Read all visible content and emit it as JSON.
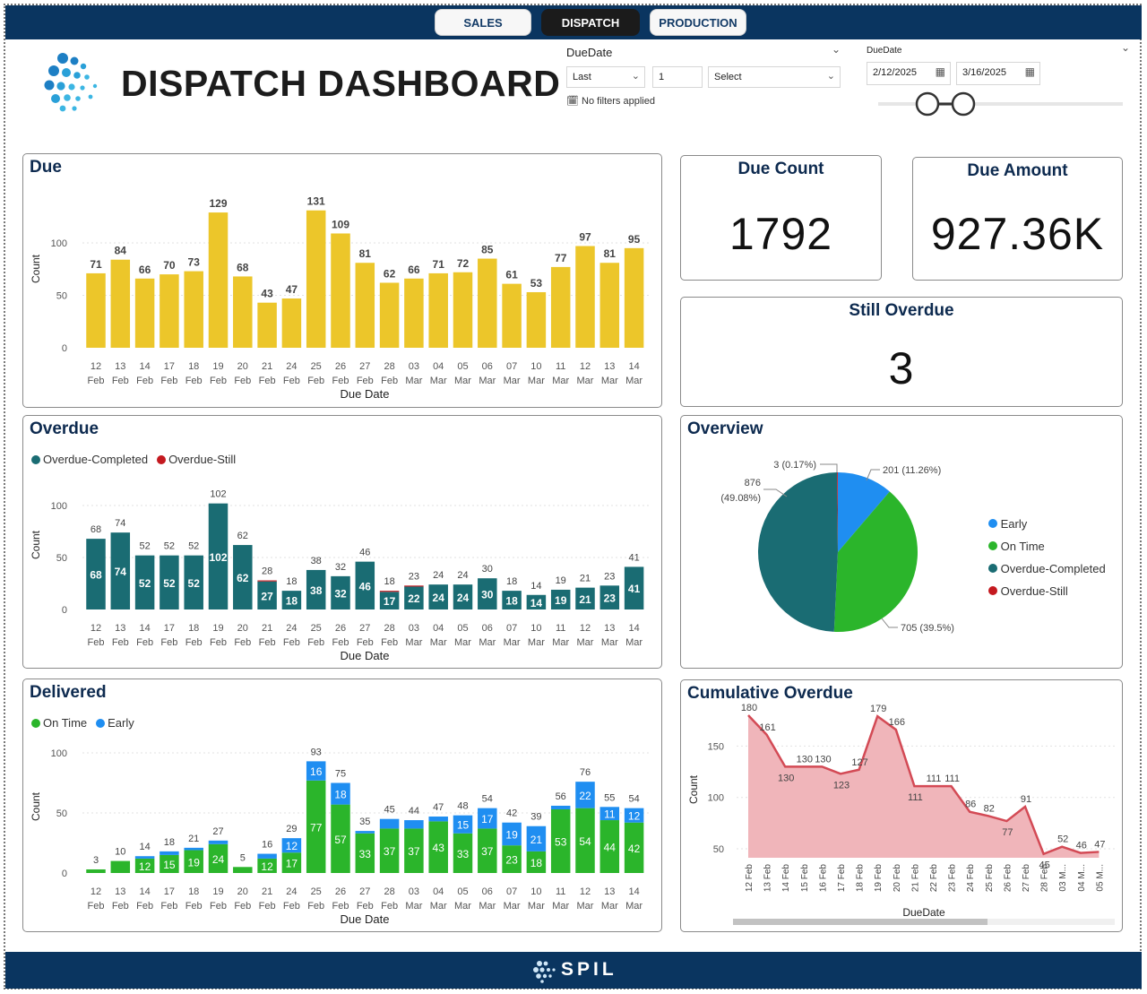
{
  "tabs": [
    "SALES",
    "DISPATCH",
    "PRODUCTION"
  ],
  "header": {
    "title": "DISPATCH DASHBOARD",
    "filter1": {
      "label": "DueDate",
      "mode": "Last",
      "count": "1",
      "unit": "Select",
      "status": "No filters applied"
    },
    "filter2": {
      "label": "DueDate",
      "start": "2/12/2025",
      "end": "3/16/2025"
    }
  },
  "dates": [
    [
      "12",
      "Feb"
    ],
    [
      "13",
      "Feb"
    ],
    [
      "14",
      "Feb"
    ],
    [
      "17",
      "Feb"
    ],
    [
      "18",
      "Feb"
    ],
    [
      "19",
      "Feb"
    ],
    [
      "20",
      "Feb"
    ],
    [
      "21",
      "Feb"
    ],
    [
      "24",
      "Feb"
    ],
    [
      "25",
      "Feb"
    ],
    [
      "26",
      "Feb"
    ],
    [
      "27",
      "Feb"
    ],
    [
      "28",
      "Feb"
    ],
    [
      "03",
      "Mar"
    ],
    [
      "04",
      "Mar"
    ],
    [
      "05",
      "Mar"
    ],
    [
      "06",
      "Mar"
    ],
    [
      "07",
      "Mar"
    ],
    [
      "10",
      "Mar"
    ],
    [
      "11",
      "Mar"
    ],
    [
      "12",
      "Mar"
    ],
    [
      "13",
      "Mar"
    ],
    [
      "14",
      "Mar"
    ]
  ],
  "due": {
    "title": "Due",
    "ylabel": "Count",
    "xlabel": "Due Date"
  },
  "overdue": {
    "title": "Overdue",
    "ylabel": "Count",
    "xlabel": "Due Date",
    "legend": [
      "Overdue-Completed",
      "Overdue-Still"
    ]
  },
  "delivered": {
    "title": "Delivered",
    "ylabel": "Count",
    "xlabel": "Due Date",
    "legend": [
      "On Time",
      "Early"
    ]
  },
  "kpis": {
    "due_count": {
      "title": "Due Count",
      "value": "1792"
    },
    "due_amount": {
      "title": "Due Amount",
      "value": "927.36K"
    },
    "still_overdue": {
      "title": "Still Overdue",
      "value": "3"
    }
  },
  "overview": {
    "title": "Overview",
    "legend": [
      "Early",
      "On Time",
      "Overdue-Completed",
      "Overdue-Still"
    ],
    "labels": {
      "early": "201 (11.26%)",
      "ontime": "705 (39.5%)",
      "oc_line1": "876",
      "oc_line2": "(49.08%)",
      "os": "3 (0.17%)"
    }
  },
  "cumulative": {
    "title": "Cumulative Overdue",
    "ylabel": "Count",
    "xlabel": "DueDate"
  },
  "footer": {
    "brand": "SPIL"
  },
  "colors": {
    "yellow": "#ecc62a",
    "teal": "#1a6c73",
    "red": "#c4191f",
    "green": "#2bb52b",
    "blue": "#1f8ef1",
    "navy": "#0a3560",
    "cumLine": "#d34a55",
    "cumFill": "#f0b5ba"
  },
  "chart_data": [
    {
      "type": "bar",
      "title": "Due",
      "xlabel": "Due Date",
      "ylabel": "Count",
      "ylim": [
        0,
        140
      ],
      "categories": [
        "12 Feb",
        "13 Feb",
        "14 Feb",
        "17 Feb",
        "18 Feb",
        "19 Feb",
        "20 Feb",
        "21 Feb",
        "24 Feb",
        "25 Feb",
        "26 Feb",
        "27 Feb",
        "28 Feb",
        "03 Mar",
        "04 Mar",
        "05 Mar",
        "06 Mar",
        "07 Mar",
        "10 Mar",
        "11 Mar",
        "12 Mar",
        "13 Mar",
        "14 Mar"
      ],
      "values": [
        71,
        84,
        66,
        70,
        73,
        129,
        68,
        43,
        47,
        131,
        109,
        81,
        62,
        66,
        71,
        72,
        85,
        61,
        53,
        77,
        97,
        81,
        95
      ]
    },
    {
      "type": "bar",
      "title": "Overdue",
      "xlabel": "Due Date",
      "ylabel": "Count",
      "ylim": [
        0,
        110
      ],
      "stacked": true,
      "categories": [
        "12 Feb",
        "13 Feb",
        "14 Feb",
        "17 Feb",
        "18 Feb",
        "19 Feb",
        "20 Feb",
        "21 Feb",
        "24 Feb",
        "25 Feb",
        "26 Feb",
        "27 Feb",
        "28 Feb",
        "03 Mar",
        "04 Mar",
        "05 Mar",
        "06 Mar",
        "07 Mar",
        "10 Mar",
        "11 Mar",
        "12 Mar",
        "13 Mar",
        "14 Mar"
      ],
      "series": [
        {
          "name": "Overdue-Completed",
          "values": [
            68,
            74,
            52,
            52,
            52,
            102,
            62,
            27,
            18,
            38,
            32,
            46,
            17,
            22,
            24,
            24,
            30,
            18,
            14,
            19,
            21,
            23,
            41
          ]
        },
        {
          "name": "Overdue-Still",
          "values": [
            0,
            0,
            0,
            0,
            0,
            0,
            0,
            1,
            0,
            0,
            0,
            0,
            1,
            1,
            0,
            0,
            0,
            0,
            0,
            0,
            0,
            0,
            0
          ]
        }
      ],
      "totals": [
        68,
        74,
        52,
        52,
        52,
        102,
        62,
        28,
        18,
        38,
        32,
        46,
        18,
        23,
        24,
        24,
        30,
        18,
        14,
        19,
        21,
        23,
        41
      ]
    },
    {
      "type": "bar",
      "title": "Delivered",
      "xlabel": "Due Date",
      "ylabel": "Count",
      "ylim": [
        0,
        105
      ],
      "stacked": true,
      "categories": [
        "12 Feb",
        "13 Feb",
        "14 Feb",
        "17 Feb",
        "18 Feb",
        "19 Feb",
        "20 Feb",
        "21 Feb",
        "24 Feb",
        "25 Feb",
        "26 Feb",
        "27 Feb",
        "28 Feb",
        "03 Mar",
        "04 Mar",
        "05 Mar",
        "06 Mar",
        "07 Mar",
        "10 Mar",
        "11 Mar",
        "12 Mar",
        "13 Mar",
        "14 Mar"
      ],
      "series": [
        {
          "name": "On Time",
          "values": [
            3,
            10,
            12,
            15,
            19,
            24,
            5,
            12,
            17,
            77,
            57,
            33,
            37,
            37,
            43,
            33,
            37,
            23,
            18,
            53,
            54,
            44,
            42
          ]
        },
        {
          "name": "Early",
          "values": [
            0,
            0,
            2,
            3,
            2,
            3,
            0,
            4,
            12,
            16,
            18,
            2,
            8,
            7,
            4,
            15,
            17,
            19,
            21,
            3,
            22,
            11,
            12
          ]
        }
      ],
      "totals": [
        3,
        10,
        14,
        18,
        21,
        27,
        5,
        16,
        29,
        93,
        75,
        35,
        45,
        44,
        47,
        48,
        54,
        42,
        39,
        56,
        76,
        55,
        54
      ],
      "show_inner": [
        false,
        false,
        true,
        true,
        true,
        true,
        false,
        true,
        true,
        true,
        true,
        true,
        true,
        true,
        true,
        true,
        true,
        true,
        true,
        true,
        true,
        true,
        true
      ]
    },
    {
      "type": "pie",
      "title": "Overview",
      "slices": [
        {
          "name": "Early",
          "value": 201,
          "pct": 11.26
        },
        {
          "name": "On Time",
          "value": 705,
          "pct": 39.5
        },
        {
          "name": "Overdue-Completed",
          "value": 876,
          "pct": 49.08
        },
        {
          "name": "Overdue-Still",
          "value": 3,
          "pct": 0.17
        }
      ]
    },
    {
      "type": "area",
      "title": "Cumulative Overdue",
      "xlabel": "DueDate",
      "ylabel": "Count",
      "ylim": [
        40,
        185
      ],
      "x": [
        "12 Feb",
        "13 Feb",
        "14 Feb",
        "15 Feb",
        "16 Feb",
        "17 Feb",
        "18 Feb",
        "19 Feb",
        "20 Feb",
        "21 Feb",
        "22 Feb",
        "23 Feb",
        "24 Feb",
        "25 Feb",
        "26 Feb",
        "27 Feb",
        "28 Feb",
        "03 M...",
        "04 M...",
        "05 M..."
      ],
      "values": [
        180,
        161,
        130,
        130,
        130,
        123,
        127,
        179,
        166,
        111,
        111,
        111,
        86,
        82,
        77,
        91,
        45,
        52,
        46,
        47
      ]
    }
  ]
}
